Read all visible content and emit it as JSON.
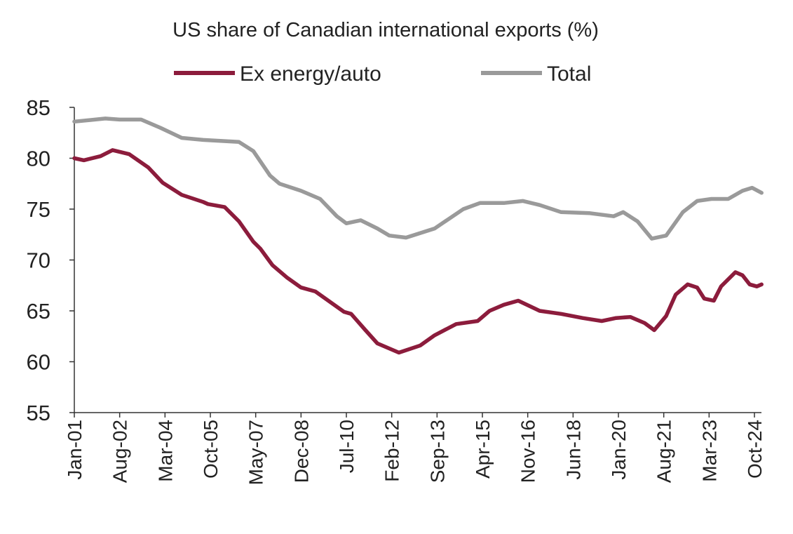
{
  "chart_data": {
    "type": "line",
    "title": "US share of Canadian international exports (%)",
    "xlabel": "",
    "ylabel": "",
    "ylim": [
      55,
      85
    ],
    "yticks": [
      55,
      60,
      65,
      70,
      75,
      80,
      85
    ],
    "xlim": [
      "2001-01",
      "2025-01"
    ],
    "xtick_labels": [
      "Jan-01",
      "Aug-02",
      "Mar-04",
      "Oct-05",
      "May-07",
      "Dec-08",
      "Jul-10",
      "Feb-12",
      "Sep-13",
      "Apr-15",
      "Nov-16",
      "Jun-18",
      "Jan-20",
      "Aug-21",
      "Mar-23",
      "Oct-24"
    ],
    "xtick_dates": [
      "2001-01",
      "2002-08",
      "2004-03",
      "2005-10",
      "2007-05",
      "2008-12",
      "2010-07",
      "2012-02",
      "2013-09",
      "2015-04",
      "2016-11",
      "2018-06",
      "2020-01",
      "2021-08",
      "2023-03",
      "2024-10"
    ],
    "grid": false,
    "legend_placement": "top",
    "series": [
      {
        "name": "Ex energy/auto",
        "color": "#8c1c3c",
        "points": [
          [
            "2001-01",
            80.0
          ],
          [
            "2001-05",
            79.8
          ],
          [
            "2001-12",
            80.2
          ],
          [
            "2002-05",
            80.8
          ],
          [
            "2002-12",
            80.4
          ],
          [
            "2003-08",
            79.1
          ],
          [
            "2004-02",
            77.6
          ],
          [
            "2004-10",
            76.4
          ],
          [
            "2005-07",
            75.7
          ],
          [
            "2005-09",
            75.5
          ],
          [
            "2006-04",
            75.2
          ],
          [
            "2006-10",
            73.8
          ],
          [
            "2007-04",
            71.8
          ],
          [
            "2007-07",
            71.1
          ],
          [
            "2007-12",
            69.5
          ],
          [
            "2008-06",
            68.3
          ],
          [
            "2008-12",
            67.3
          ],
          [
            "2009-06",
            66.9
          ],
          [
            "2009-12",
            65.9
          ],
          [
            "2010-06",
            64.9
          ],
          [
            "2010-09",
            64.7
          ],
          [
            "2011-03",
            63.1
          ],
          [
            "2011-08",
            61.8
          ],
          [
            "2012-02",
            61.2
          ],
          [
            "2012-05",
            60.9
          ],
          [
            "2013-02",
            61.6
          ],
          [
            "2013-08",
            62.6
          ],
          [
            "2014-05",
            63.7
          ],
          [
            "2015-02",
            64.0
          ],
          [
            "2015-07",
            65.0
          ],
          [
            "2016-01",
            65.6
          ],
          [
            "2016-07",
            66.0
          ],
          [
            "2017-04",
            65.0
          ],
          [
            "2018-01",
            64.7
          ],
          [
            "2018-10",
            64.3
          ],
          [
            "2019-06",
            64.0
          ],
          [
            "2019-12",
            64.3
          ],
          [
            "2020-06",
            64.4
          ],
          [
            "2020-12",
            63.8
          ],
          [
            "2021-04",
            63.1
          ],
          [
            "2021-09",
            64.5
          ],
          [
            "2022-01",
            66.6
          ],
          [
            "2022-06",
            67.6
          ],
          [
            "2022-10",
            67.3
          ],
          [
            "2023-01",
            66.2
          ],
          [
            "2023-05",
            66.0
          ],
          [
            "2023-08",
            67.4
          ],
          [
            "2024-02",
            68.8
          ],
          [
            "2024-05",
            68.5
          ],
          [
            "2024-08",
            67.6
          ],
          [
            "2024-11",
            67.4
          ],
          [
            "2025-01",
            67.6
          ]
        ]
      },
      {
        "name": "Total",
        "color": "#9a9a9a",
        "points": [
          [
            "2001-01",
            83.6
          ],
          [
            "2002-02",
            83.9
          ],
          [
            "2002-08",
            83.8
          ],
          [
            "2003-05",
            83.8
          ],
          [
            "2004-01",
            83.0
          ],
          [
            "2004-10",
            82.0
          ],
          [
            "2005-07",
            81.8
          ],
          [
            "2006-10",
            81.6
          ],
          [
            "2007-04",
            80.7
          ],
          [
            "2007-11",
            78.3
          ],
          [
            "2008-03",
            77.5
          ],
          [
            "2008-12",
            76.8
          ],
          [
            "2009-08",
            76.0
          ],
          [
            "2010-03",
            74.3
          ],
          [
            "2010-07",
            73.6
          ],
          [
            "2011-01",
            73.9
          ],
          [
            "2011-08",
            73.1
          ],
          [
            "2012-01",
            72.4
          ],
          [
            "2012-08",
            72.2
          ],
          [
            "2013-08",
            73.1
          ],
          [
            "2014-08",
            75.0
          ],
          [
            "2015-03",
            75.6
          ],
          [
            "2016-01",
            75.6
          ],
          [
            "2016-09",
            75.8
          ],
          [
            "2017-04",
            75.4
          ],
          [
            "2018-01",
            74.7
          ],
          [
            "2019-01",
            74.6
          ],
          [
            "2019-11",
            74.3
          ],
          [
            "2020-03",
            74.7
          ],
          [
            "2020-09",
            73.8
          ],
          [
            "2021-03",
            72.1
          ],
          [
            "2021-09",
            72.4
          ],
          [
            "2022-04",
            74.7
          ],
          [
            "2022-10",
            75.8
          ],
          [
            "2023-04",
            76.0
          ],
          [
            "2023-11",
            76.0
          ],
          [
            "2024-05",
            76.8
          ],
          [
            "2024-09",
            77.1
          ],
          [
            "2025-01",
            76.6
          ]
        ]
      }
    ]
  }
}
